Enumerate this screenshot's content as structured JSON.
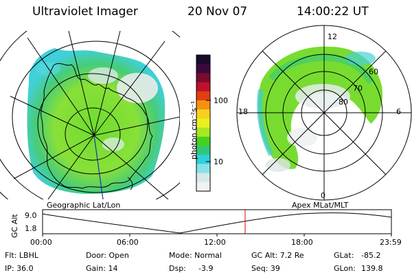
{
  "header": {
    "instrument": "Ultraviolet Imager",
    "date": "20 Nov 07",
    "time": "14:00:22 UT"
  },
  "colorbar": {
    "label": "photon cm⁻²s⁻¹",
    "ticks": [
      "100",
      "10"
    ],
    "colors": [
      "#1a0a2e",
      "#3a0a3a",
      "#7a0a30",
      "#c0102a",
      "#e04010",
      "#f89010",
      "#f8d020",
      "#e8f020",
      "#a8e820",
      "#48d020",
      "#30c878",
      "#30d0d8",
      "#88e0e8",
      "#d8e8e8",
      "#f2f2f2"
    ]
  },
  "geo_panel": {
    "title": "Geographic Lat/Lon"
  },
  "polar_panel": {
    "title": "Apex MLat/MLT",
    "mlt_labels": {
      "top": "12",
      "left": "18",
      "right": "6",
      "bottom": "0"
    },
    "lat_labels": [
      "60",
      "70",
      "80"
    ]
  },
  "timeline": {
    "axis_label": "GC Alt",
    "y_ticks": [
      "9.0",
      "1.8"
    ],
    "x_ticks": [
      "00:00",
      "06:00",
      "12:00",
      "18:00",
      "23:59"
    ],
    "current_marker_color": "#e00000"
  },
  "status": {
    "filter": "Flt: LBHL",
    "ip": "IP: 36.0",
    "door": "Door: Open",
    "gain": "Gain: 14",
    "mode": "Mode: Normal",
    "dsp_label": "Dsp:",
    "dsp_value": "-3.9",
    "gc_alt": "GC Alt: 7.2 Re",
    "seq": "Seq: 39",
    "glat_label": "GLat:",
    "glat_value": "-85.2",
    "glon_label": "GLon:",
    "glon_value": "139.8"
  }
}
